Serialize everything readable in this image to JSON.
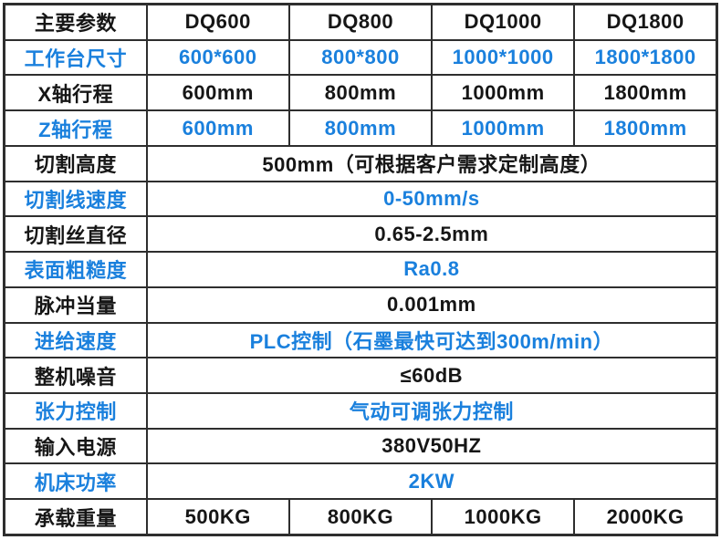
{
  "table": {
    "kind": "machine-specification-table",
    "accent_color": "#1a80dd",
    "text_color": "#161616",
    "border_color": "#2e2e2e",
    "background_color": "#ffffff",
    "columns": 5,
    "rows": [
      {
        "label": "主要参数",
        "color": "black",
        "cells": [
          "DQ600",
          "DQ800",
          "DQ1000",
          "DQ1800"
        ]
      },
      {
        "label": "工作台尺寸",
        "color": "blue",
        "cells": [
          "600*600",
          "800*800",
          "1000*1000",
          "1800*1800"
        ]
      },
      {
        "label": "X轴行程",
        "color": "black",
        "cells": [
          "600mm",
          "800mm",
          "1000mm",
          "1800mm"
        ]
      },
      {
        "label": "Z轴行程",
        "color": "blue",
        "cells": [
          "600mm",
          "800mm",
          "1000mm",
          "1800mm"
        ]
      },
      {
        "label": "切割高度",
        "color": "black",
        "span_value": "500mm（可根据客户需求定制高度）"
      },
      {
        "label": "切割线速度",
        "color": "blue",
        "span_value": "0-50mm/s"
      },
      {
        "label": "切割丝直径",
        "color": "black",
        "span_value": "0.65-2.5mm"
      },
      {
        "label": "表面粗糙度",
        "color": "blue",
        "span_value": "Ra0.8"
      },
      {
        "label": "脉冲当量",
        "color": "black",
        "span_value": "0.001mm"
      },
      {
        "label": "进给速度",
        "color": "blue",
        "span_value": "PLC控制（石墨最快可达到300m/min）"
      },
      {
        "label": "整机噪音",
        "color": "black",
        "span_value": "≤60dB"
      },
      {
        "label": "张力控制",
        "color": "blue",
        "span_value": "气动可调张力控制"
      },
      {
        "label": "输入电源",
        "color": "black",
        "span_value": "380V50HZ"
      },
      {
        "label": "机床功率",
        "color": "blue",
        "span_value": "2KW"
      },
      {
        "label": "承载重量",
        "color": "black",
        "cells": [
          "500KG",
          "800KG",
          "1000KG",
          "2000KG"
        ]
      }
    ]
  }
}
